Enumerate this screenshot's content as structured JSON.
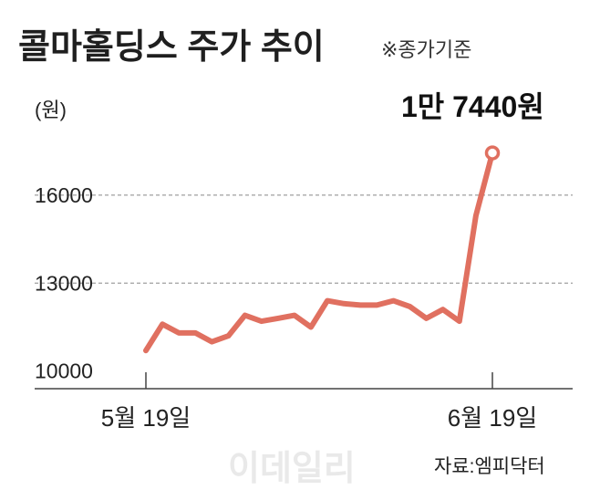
{
  "title": "콜마홀딩스 주가 추이",
  "note": "※종가기준",
  "unit": "(원)",
  "last_value_label": "1만 7440원",
  "source": "자료:엠피닥터",
  "watermark": "이데일리",
  "colors": {
    "line": "#e07060",
    "axis": "#444444",
    "grid": "#888888"
  },
  "chart_data": {
    "type": "line",
    "title": "콜마홀딩스 주가 추이",
    "ylabel": "(원)",
    "ylim": [
      9400,
      17800
    ],
    "yticks": [
      10000,
      13000,
      16000
    ],
    "xticks": [
      {
        "index": 0,
        "label": "5월 19일"
      },
      {
        "index": 21,
        "label": "6월 19일"
      }
    ],
    "series": [
      {
        "values": [
          10700,
          11600,
          11300,
          11300,
          11000,
          11200,
          11900,
          11700,
          11800,
          11900,
          11500,
          12400,
          12300,
          12250,
          12250,
          12400,
          12200,
          11800,
          12100,
          11700,
          15300,
          17440
        ]
      }
    ],
    "grid": "horizontal dashed",
    "last_point_marker": true
  }
}
